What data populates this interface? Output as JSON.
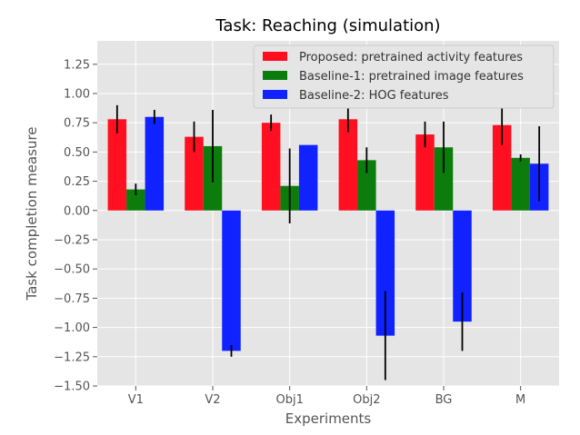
{
  "chart_data": {
    "type": "bar",
    "title": "Task: Reaching (simulation)",
    "xlabel": "Experiments",
    "ylabel": "Task completion measure",
    "categories": [
      "V1",
      "V2",
      "Obj1",
      "Obj2",
      "BG",
      "M"
    ],
    "ylim": [
      -1.5,
      1.45
    ],
    "yticks": [
      1.25,
      1.0,
      0.75,
      0.5,
      0.25,
      0.0,
      -0.25,
      -0.5,
      -0.75,
      -1.0,
      -1.25,
      -1.5
    ],
    "ytick_labels": [
      "1.25",
      "1.00",
      "0.75",
      "0.50",
      "0.25",
      "0.00",
      "−0.25",
      "−0.50",
      "−0.75",
      "−1.00",
      "−1.25",
      "−1.50"
    ],
    "grid": true,
    "legend_position": "top-right",
    "series": [
      {
        "name": "Proposed: pretrained activity features",
        "color": "#ff0f1f",
        "values": [
          0.78,
          0.63,
          0.75,
          0.78,
          0.65,
          0.73
        ],
        "errors": [
          0.12,
          0.13,
          0.07,
          0.11,
          0.11,
          0.17
        ]
      },
      {
        "name": "Baseline-1: pretrained image features",
        "color": "#0c7d0c",
        "values": [
          0.18,
          0.55,
          0.21,
          0.43,
          0.54,
          0.45
        ],
        "errors": [
          0.05,
          0.31,
          0.32,
          0.11,
          0.22,
          0.03
        ]
      },
      {
        "name": "Baseline-2: HOG features",
        "color": "#0f22ff",
        "values": [
          0.8,
          -1.2,
          0.56,
          -1.07,
          -0.95,
          0.4
        ],
        "errors": [
          0.06,
          0.05,
          0.0,
          0.38,
          0.25,
          0.32
        ]
      }
    ]
  }
}
